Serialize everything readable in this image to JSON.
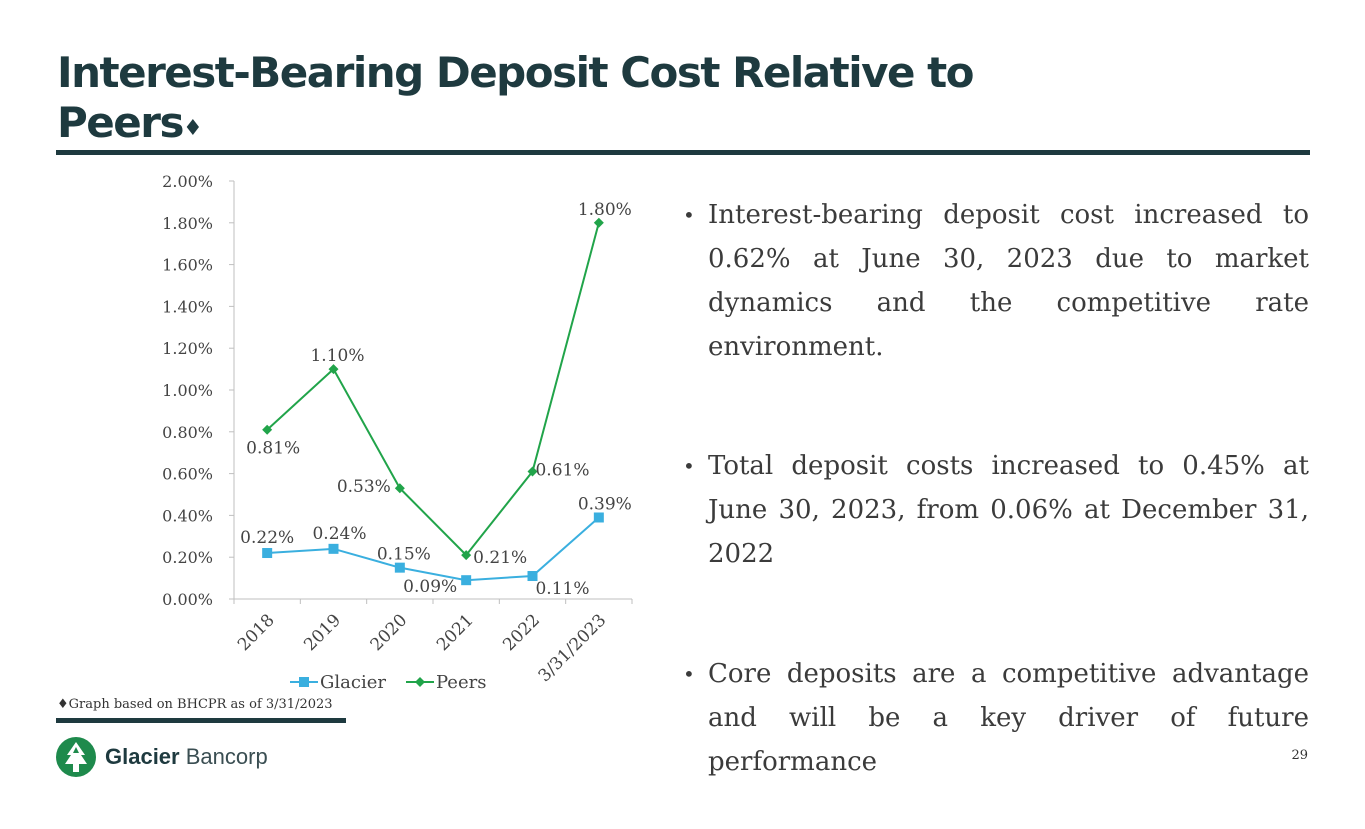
{
  "slide": {
    "title": "Interest-Bearing Deposit Cost Relative to Peers",
    "title_mark": "♦",
    "page_number": "29",
    "footnote": "♦Graph based on BHCPR as of 3/31/2023",
    "logo": {
      "name_bold": "Glacier",
      "name_light": "Bancorp",
      "icon": "mountain-tree-logo-icon"
    }
  },
  "bullets": [
    "Interest-bearing deposit cost increased to 0.62% at June 30, 2023 due to market dynamics and the competitive rate environment.",
    "Total deposit costs increased to 0.45% at June 30, 2023, from 0.06% at December 31, 2022",
    "Core deposits are a competitive advantage and will be a key driver of future performance"
  ],
  "colors": {
    "title": "#1e3a3f",
    "glacier": "#3aafdf",
    "peers": "#21a44a",
    "rule": "#1e3a3f"
  },
  "chart_data": {
    "type": "line",
    "categories": [
      "2018",
      "2019",
      "2020",
      "2021",
      "2022",
      "3/31/2023"
    ],
    "series": [
      {
        "name": "Glacier",
        "values": [
          0.22,
          0.24,
          0.15,
          0.09,
          0.11,
          0.39
        ],
        "labels": [
          "0.22%",
          "0.24%",
          "0.15%",
          "0.09%",
          "0.11%",
          "0.39%"
        ],
        "marker": "square"
      },
      {
        "name": "Peers",
        "values": [
          0.81,
          1.1,
          0.53,
          0.21,
          0.61,
          1.8
        ],
        "labels": [
          "0.81%",
          "1.10%",
          "0.53%",
          "0.21%",
          "0.61%",
          "1.80%"
        ],
        "marker": "diamond"
      }
    ],
    "ylim": [
      0,
      2.0
    ],
    "yticks": [
      "0.00%",
      "0.20%",
      "0.40%",
      "0.60%",
      "0.80%",
      "1.00%",
      "1.20%",
      "1.40%",
      "1.60%",
      "1.80%",
      "2.00%"
    ],
    "legend_position": "bottom",
    "grid": false
  }
}
